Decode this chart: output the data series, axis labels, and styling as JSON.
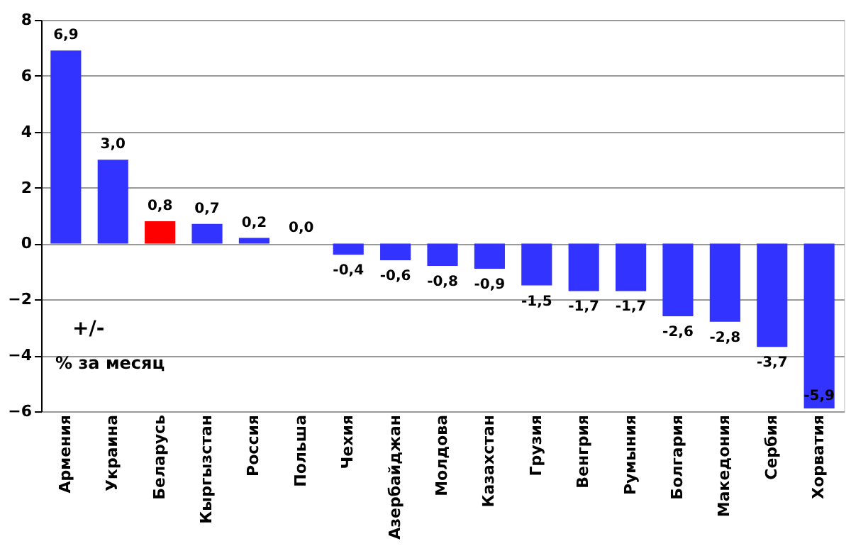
{
  "chart_data": {
    "type": "bar",
    "categories": [
      "Армения",
      "Украина",
      "Беларусь",
      "Кыргызстан",
      "Россия",
      "Польша",
      "Чехия",
      "Азербайджан",
      "Молдова",
      "Казахстан",
      "Грузия",
      "Венгрия",
      "Румыния",
      "Болгария",
      "Македония",
      "Сербия",
      "Хорватия"
    ],
    "values": [
      6.9,
      3.0,
      0.8,
      0.7,
      0.2,
      0.0,
      -0.4,
      -0.6,
      -0.8,
      -0.9,
      -1.5,
      -1.7,
      -1.7,
      -2.6,
      -2.8,
      -3.7,
      -5.9
    ],
    "colors": [
      "#3333ff",
      "#3333ff",
      "#ff0000",
      "#3333ff",
      "#3333ff",
      "#3333ff",
      "#3333ff",
      "#3333ff",
      "#3333ff",
      "#3333ff",
      "#3333ff",
      "#3333ff",
      "#3333ff",
      "#3333ff",
      "#3333ff",
      "#3333ff",
      "#3333ff"
    ],
    "value_labels": [
      "6,9",
      "3,0",
      "0,8",
      "0,7",
      "0,2",
      "0,0",
      "-0,4",
      "-0,6",
      "-0,8",
      "-0,9",
      "-1,5",
      "-1,7",
      "-1,7",
      "-2,6",
      "-2,8",
      "-3,7",
      "-5,9"
    ],
    "ylim": [
      -6,
      8
    ],
    "yticks": [
      -6,
      -4,
      -2,
      0,
      2,
      4,
      6,
      8
    ],
    "grid": "y",
    "annotations": [
      "+/-",
      "% за месяц"
    ]
  }
}
